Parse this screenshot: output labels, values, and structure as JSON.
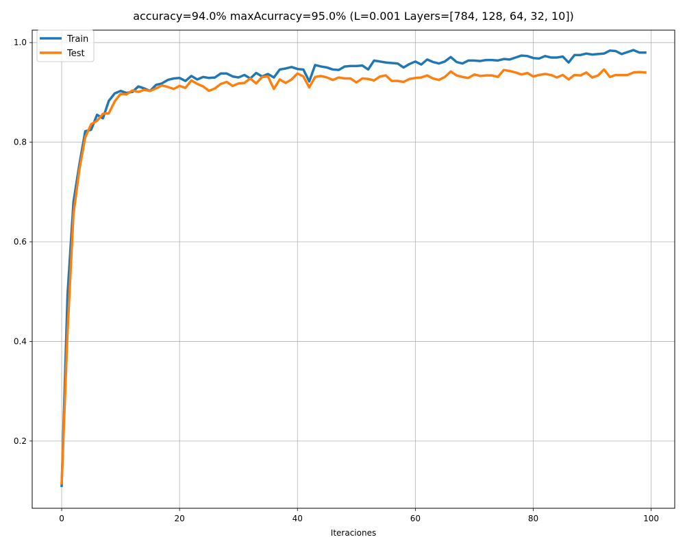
{
  "chart_data": {
    "type": "line",
    "title": "accuracy=94.0%  maxAcurracy=95.0% (L=0.001 Layers=[784, 128, 64, 32, 10])",
    "xlabel": "Iteraciones",
    "ylabel": "",
    "xlim": [
      -5,
      104
    ],
    "ylim": [
      0.065,
      1.025
    ],
    "xticks": [
      0,
      20,
      40,
      60,
      80,
      100
    ],
    "yticks": [
      0.2,
      0.4,
      0.6,
      0.8,
      1.0
    ],
    "grid": true,
    "legend_position": "upper-left",
    "series": [
      {
        "name": "Train",
        "color": "#1f77b4",
        "values": [
          0.11,
          0.495,
          0.68,
          0.755,
          0.822,
          0.825,
          0.855,
          0.848,
          0.883,
          0.898,
          0.903,
          0.899,
          0.901,
          0.912,
          0.908,
          0.903,
          0.915,
          0.918,
          0.925,
          0.928,
          0.929,
          0.923,
          0.933,
          0.926,
          0.931,
          0.929,
          0.93,
          0.938,
          0.938,
          0.932,
          0.93,
          0.935,
          0.928,
          0.939,
          0.932,
          0.937,
          0.93,
          0.946,
          0.948,
          0.951,
          0.947,
          0.946,
          0.922,
          0.955,
          0.952,
          0.95,
          0.946,
          0.945,
          0.952,
          0.953,
          0.953,
          0.954,
          0.946,
          0.964,
          0.962,
          0.96,
          0.959,
          0.958,
          0.95,
          0.957,
          0.962,
          0.956,
          0.966,
          0.961,
          0.958,
          0.962,
          0.971,
          0.961,
          0.958,
          0.964,
          0.964,
          0.963,
          0.965,
          0.965,
          0.964,
          0.967,
          0.966,
          0.97,
          0.974,
          0.973,
          0.969,
          0.968,
          0.973,
          0.97,
          0.97,
          0.972,
          0.96,
          0.975,
          0.975,
          0.978,
          0.976,
          0.977,
          0.978,
          0.984,
          0.983,
          0.977,
          0.981,
          0.985,
          0.98,
          0.98
        ]
      },
      {
        "name": "Test",
        "color": "#ff7f0e",
        "values": [
          0.115,
          0.42,
          0.655,
          0.745,
          0.81,
          0.836,
          0.843,
          0.857,
          0.858,
          0.882,
          0.897,
          0.896,
          0.904,
          0.901,
          0.905,
          0.903,
          0.908,
          0.914,
          0.911,
          0.907,
          0.913,
          0.909,
          0.924,
          0.917,
          0.912,
          0.903,
          0.908,
          0.917,
          0.921,
          0.913,
          0.918,
          0.919,
          0.928,
          0.918,
          0.931,
          0.932,
          0.907,
          0.926,
          0.919,
          0.926,
          0.938,
          0.932,
          0.91,
          0.931,
          0.933,
          0.93,
          0.925,
          0.93,
          0.928,
          0.928,
          0.92,
          0.928,
          0.927,
          0.924,
          0.932,
          0.934,
          0.923,
          0.923,
          0.921,
          0.927,
          0.929,
          0.93,
          0.934,
          0.928,
          0.925,
          0.931,
          0.942,
          0.934,
          0.931,
          0.929,
          0.936,
          0.933,
          0.934,
          0.934,
          0.931,
          0.945,
          0.943,
          0.94,
          0.936,
          0.939,
          0.932,
          0.935,
          0.937,
          0.935,
          0.93,
          0.935,
          0.926,
          0.935,
          0.934,
          0.94,
          0.93,
          0.934,
          0.946,
          0.931,
          0.935,
          0.935,
          0.935,
          0.94,
          0.941,
          0.94
        ]
      }
    ]
  }
}
